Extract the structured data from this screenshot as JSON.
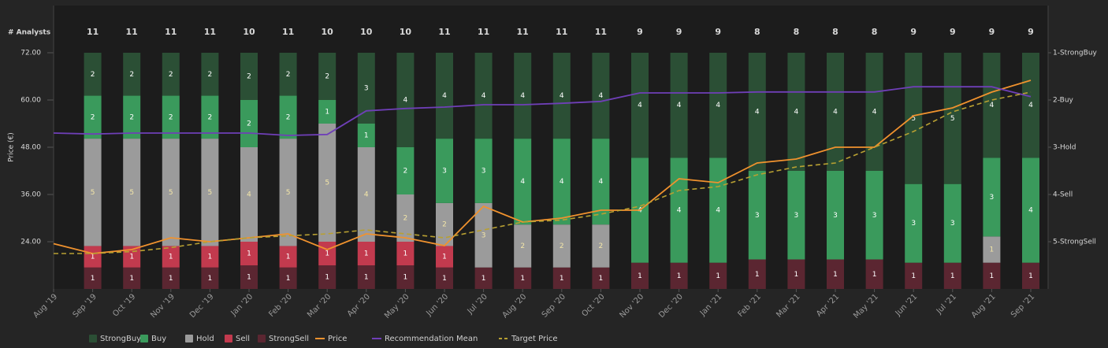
{
  "chart_data": {
    "type": "bar",
    "stacked": true,
    "ylabel": "Price (€)",
    "analysts_label": "# Analysts",
    "categories": [
      "Aug '19",
      "Sep '19",
      "Oct '19",
      "Nov '19",
      "Dec '19",
      "Jan '20",
      "Feb '20",
      "Mar '20",
      "Apr '20",
      "May '20",
      "Jun '20",
      "Jul '20",
      "Aug '20",
      "Sep '20",
      "Oct '20",
      "Nov '20",
      "Dec '20",
      "Jan '21",
      "Feb '21",
      "Mar '21",
      "Apr '21",
      "May '21",
      "Jun '21",
      "Jul '21",
      "Aug '21",
      "Sep '21"
    ],
    "analysts": [
      null,
      11,
      11,
      11,
      11,
      10,
      11,
      10,
      10,
      10,
      11,
      11,
      11,
      11,
      11,
      9,
      9,
      9,
      8,
      8,
      8,
      8,
      9,
      9,
      9,
      9
    ],
    "ylim": [
      12,
      84
    ],
    "yticks": [
      {
        "value": 24,
        "label": "24.00"
      },
      {
        "value": 36,
        "label": "36.00"
      },
      {
        "value": 48,
        "label": "48.00"
      },
      {
        "value": 60,
        "label": "60.00"
      },
      {
        "value": 72,
        "label": "72.00"
      }
    ],
    "y2lim": [
      6,
      0
    ],
    "y2ticks": [
      {
        "value": 1,
        "label": "1-StrongBuy"
      },
      {
        "value": 2,
        "label": "2-Buy"
      },
      {
        "value": 3,
        "label": "3-Hold"
      },
      {
        "value": 4,
        "label": "4-Sell"
      },
      {
        "value": 5,
        "label": "5-StrongSell"
      }
    ],
    "series": [
      {
        "name": "StrongBuy",
        "kind": "bar",
        "color": "#2b4f35",
        "label_color": "#ffffff",
        "values": [
          null,
          2,
          2,
          2,
          2,
          2,
          2,
          2,
          3,
          4,
          4,
          4,
          4,
          4,
          4,
          4,
          4,
          4,
          4,
          4,
          4,
          4,
          5,
          5,
          4,
          4
        ]
      },
      {
        "name": "Buy",
        "kind": "bar",
        "color": "#3a9a5c",
        "label_color": "#ffffff",
        "values": [
          null,
          2,
          2,
          2,
          2,
          2,
          2,
          1,
          1,
          2,
          3,
          3,
          4,
          4,
          4,
          4,
          4,
          4,
          3,
          3,
          3,
          3,
          3,
          3,
          3,
          4
        ]
      },
      {
        "name": "Hold",
        "kind": "bar",
        "color": "#9b9b9b",
        "label_color": "#f3e6a8",
        "values": [
          null,
          5,
          5,
          5,
          5,
          4,
          5,
          5,
          4,
          2,
          2,
          3,
          2,
          2,
          2,
          0,
          0,
          0,
          0,
          0,
          0,
          0,
          0,
          0,
          1,
          0
        ]
      },
      {
        "name": "Sell",
        "kind": "bar",
        "color": "#c23a4e",
        "label_color": "#ffffff",
        "values": [
          null,
          1,
          1,
          1,
          1,
          1,
          1,
          1,
          1,
          1,
          1,
          0,
          0,
          0,
          0,
          0,
          0,
          0,
          0,
          0,
          0,
          0,
          0,
          0,
          0,
          0
        ]
      },
      {
        "name": "StrongSell",
        "kind": "bar",
        "color": "#5b2631",
        "label_color": "#ffffff",
        "values": [
          null,
          1,
          1,
          1,
          1,
          1,
          1,
          1,
          1,
          1,
          1,
          1,
          1,
          1,
          1,
          1,
          1,
          1,
          1,
          1,
          1,
          1,
          1,
          1,
          1,
          1
        ]
      },
      {
        "name": "Price",
        "kind": "line",
        "color": "#f0922e",
        "values": [
          23.5,
          21,
          22,
          25,
          24,
          25,
          26,
          22,
          26,
          25,
          23,
          33,
          29,
          30,
          32,
          32,
          40,
          39,
          44,
          45,
          48,
          48,
          56,
          58,
          62,
          65
        ]
      },
      {
        "name": "Recommendation Mean",
        "kind": "line",
        "axis": "y2",
        "color": "#6f3fb8",
        "values": [
          2.7,
          2.72,
          2.7,
          2.7,
          2.7,
          2.7,
          2.75,
          2.73,
          2.23,
          2.18,
          2.15,
          2.1,
          2.1,
          2.07,
          2.03,
          1.85,
          1.85,
          1.85,
          1.83,
          1.83,
          1.83,
          1.83,
          1.72,
          1.72,
          1.72,
          1.93
        ]
      },
      {
        "name": "Target Price",
        "kind": "line",
        "dashed": true,
        "color": "#b8a032",
        "values": [
          21,
          21,
          21.5,
          22.5,
          24,
          25,
          25.5,
          26,
          27,
          26,
          25,
          27,
          29,
          29.5,
          31,
          33,
          37,
          38,
          41,
          43,
          44,
          48,
          52,
          57,
          60,
          62
        ]
      }
    ]
  }
}
